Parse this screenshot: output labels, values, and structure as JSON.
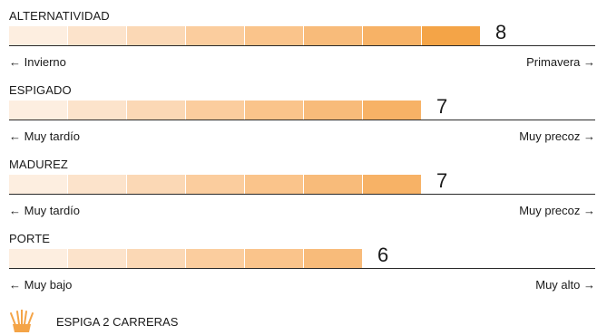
{
  "ratings": [
    {
      "title": "ALTERNATIVIDAD",
      "value": 8,
      "max": 8,
      "low_label": "← Invierno",
      "high_label": "Primavera →"
    },
    {
      "title": "ESPIGADO",
      "value": 7,
      "max": 8,
      "low_label": "← Muy tardío",
      "high_label": "Muy precoz →"
    },
    {
      "title": "MADUREZ",
      "value": 7,
      "max": 8,
      "low_label": "← Muy tardío",
      "high_label": "Muy precoz →"
    },
    {
      "title": "PORTE",
      "value": 6,
      "max": 8,
      "low_label": "← Muy bajo",
      "high_label": "Muy alto →"
    }
  ],
  "scale_colors": [
    "#fdeee0",
    "#fce3cb",
    "#fbd8b5",
    "#fbcd9e",
    "#fac48b",
    "#f8bb7a",
    "#f7b266",
    "#f4a447"
  ],
  "footer": {
    "icon": "crown-icon",
    "icon_color": "#f4a447",
    "text": "ESPIGA 2 CARRERAS"
  }
}
